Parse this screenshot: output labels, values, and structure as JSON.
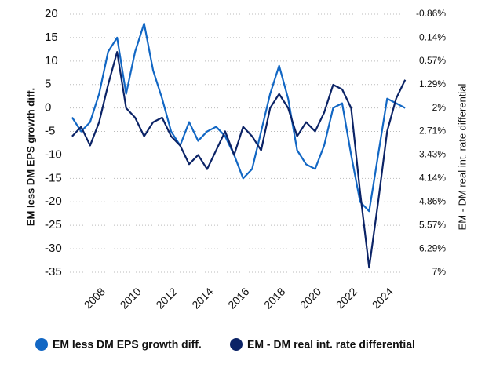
{
  "chart_data": {
    "type": "line",
    "x": [
      2006.5,
      2007,
      2007.5,
      2008,
      2008.5,
      2009,
      2009.5,
      2010,
      2010.5,
      2011,
      2011.5,
      2012,
      2012.5,
      2013,
      2013.5,
      2014,
      2014.5,
      2015,
      2015.5,
      2016,
      2016.5,
      2017,
      2017.5,
      2018,
      2018.5,
      2019,
      2019.5,
      2020,
      2020.5,
      2021,
      2021.5,
      2022,
      2022.5,
      2023,
      2023.5,
      2024,
      2024.5,
      2025
    ],
    "series": [
      {
        "name": "EM less DM EPS growth diff.",
        "color": "#1267c4",
        "axis": "y",
        "values": [
          -2,
          -5,
          -3,
          3,
          12,
          15,
          3,
          12,
          18,
          8,
          2,
          -5,
          -8,
          -3,
          -7,
          -5,
          -4,
          -6,
          -10,
          -15,
          -13,
          -5,
          3,
          9,
          2,
          -9,
          -12,
          -13,
          -8,
          0,
          1,
          -10,
          -20,
          -22,
          -10,
          2,
          1,
          0
        ]
      },
      {
        "name": "EM - DM real int. rate differential",
        "color": "#0b2366",
        "axis": "y2",
        "values": [
          2.86,
          2.57,
          3.14,
          2.43,
          1.29,
          0.29,
          2,
          2.29,
          2.86,
          2.43,
          2.29,
          2.86,
          3.14,
          3.71,
          3.43,
          3.86,
          3.29,
          2.71,
          3.43,
          2.57,
          2.86,
          3.29,
          2,
          1.57,
          2,
          2.86,
          2.43,
          2.71,
          2.14,
          1.29,
          1.43,
          2,
          4.57,
          6.86,
          4.86,
          2.71,
          1.71,
          1.14
        ]
      }
    ],
    "xlim": [
      2006.2,
      2025.6
    ],
    "xticks": [
      2008,
      2010,
      2012,
      2014,
      2016,
      2018,
      2020,
      2022,
      2024
    ],
    "ylim": [
      -35,
      20
    ],
    "yticks": [
      20,
      15,
      10,
      5,
      0,
      -5,
      -10,
      -15,
      -20,
      -25,
      -30,
      -35
    ],
    "y2lim": [
      7,
      -0.86
    ],
    "y2ticks": [
      {
        "value": -0.86,
        "label": "-0.86%"
      },
      {
        "value": -0.14,
        "label": "-0.14%"
      },
      {
        "value": 0.57,
        "label": "0.57%"
      },
      {
        "value": 1.29,
        "label": "1.29%"
      },
      {
        "value": 2,
        "label": "2%"
      },
      {
        "value": 2.71,
        "label": "2.71%"
      },
      {
        "value": 3.43,
        "label": "3.43%"
      },
      {
        "value": 4.14,
        "label": "4.14%"
      },
      {
        "value": 4.86,
        "label": "4.86%"
      },
      {
        "value": 5.57,
        "label": "5.57%"
      },
      {
        "value": 6.29,
        "label": "6.29%"
      },
      {
        "value": 7,
        "label": "7%"
      }
    ],
    "ylabel": "EM less DM EPS growth diff.",
    "y2label": "EM - DM real int. rate differential",
    "grid": true,
    "legend": "bottom"
  }
}
